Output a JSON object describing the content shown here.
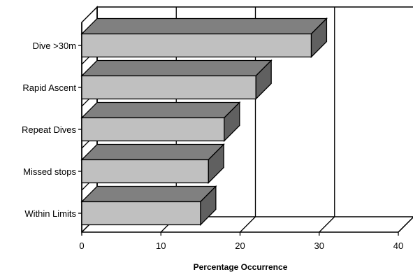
{
  "chart_data": {
    "type": "bar",
    "orientation": "horizontal",
    "three_d": true,
    "categories": [
      "Dive >30m",
      "Rapid Ascent",
      "Repeat Dives",
      "Missed stops",
      "Within Limits"
    ],
    "values": [
      29,
      22,
      18,
      16,
      15
    ],
    "xlabel": "Percentage Occurrence",
    "ylabel": "",
    "xlim": [
      0,
      40
    ],
    "xticks": [
      "0",
      "10",
      "20",
      "30",
      "40"
    ],
    "grid": true,
    "legend": "none",
    "colors": {
      "bar_front": "#c0c0c0",
      "bar_top": "#808080",
      "bar_side": "#606060",
      "outline": "#000000",
      "background": "#ffffff"
    }
  }
}
